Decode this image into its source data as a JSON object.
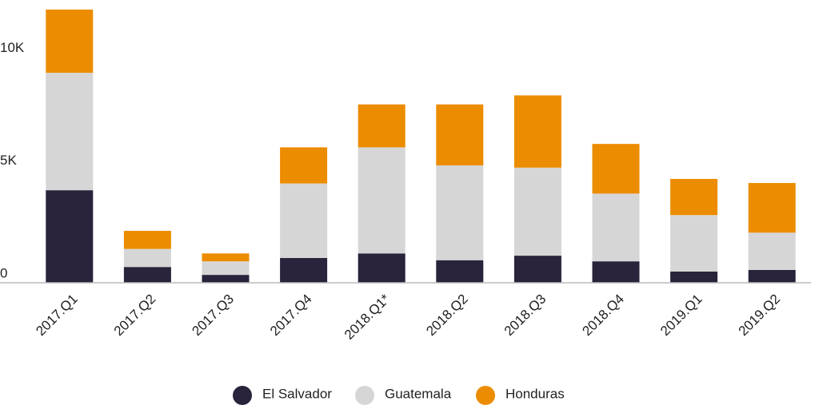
{
  "chart_data": {
    "type": "stacked_bar",
    "categories": [
      "2017.Q1",
      "2017.Q2",
      "2017.Q3",
      "2017.Q4",
      "2018.Q1*",
      "2018.Q2",
      "2018.Q3",
      "2018.Q4",
      "2019.Q1",
      "2019.Q2"
    ],
    "series": [
      {
        "name": "El Salvador",
        "color": "#29233b",
        "values": [
          4100,
          700,
          350,
          1100,
          1300,
          1000,
          1200,
          950,
          500,
          570
        ]
      },
      {
        "name": "Guatemala",
        "color": "#d6d6d6",
        "values": [
          5200,
          800,
          600,
          3300,
          4700,
          4200,
          3900,
          3000,
          2500,
          1650
        ]
      },
      {
        "name": "Honduras",
        "color": "#ec8c00",
        "values": [
          2800,
          800,
          350,
          1600,
          1900,
          2700,
          3200,
          2200,
          1600,
          2200
        ]
      }
    ],
    "ylim": [
      0,
      12100
    ],
    "yticks": [
      0,
      {
        "value": 5000,
        "label": "5K"
      },
      {
        "value": 10000,
        "label": "10K"
      }
    ],
    "grid": false,
    "legend": "bottom"
  }
}
